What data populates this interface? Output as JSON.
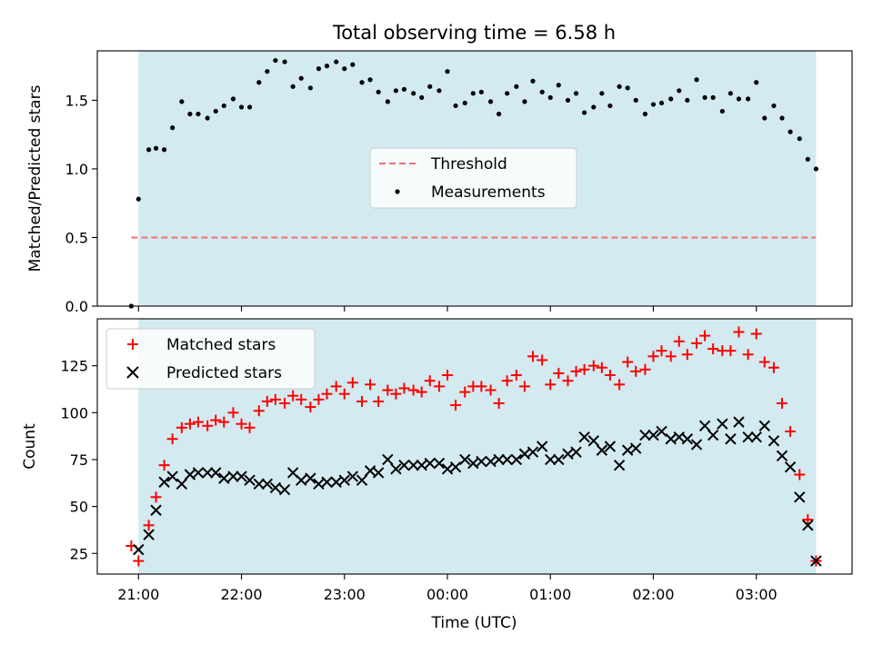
{
  "chart_data": [
    {
      "type": "scatter",
      "title": "Total observing time = 6.58 h",
      "ylabel": "Matched/Predicted stars",
      "xlabel": "",
      "ylim": [
        0,
        1.86
      ],
      "yticks": [
        0.0,
        0.5,
        1.0,
        1.5
      ],
      "ytick_labels": [
        "0.0",
        "0.5",
        "1.0",
        "1.5"
      ],
      "x_unit": "hours after 21:00 UTC",
      "xlim": [
        -0.4,
        6.93
      ],
      "shaded_span": [
        0.0,
        6.58
      ],
      "shade_color": "#d3eaf0",
      "legend": {
        "placement": "center",
        "entries": [
          "Threshold",
          "Measurements"
        ]
      },
      "threshold": {
        "name": "Threshold",
        "value": 0.5,
        "x_range": [
          -0.07,
          6.58
        ],
        "color": "#f07070"
      },
      "series": [
        {
          "name": "Measurements",
          "color": "#000000",
          "x": [
            -0.07,
            0.0,
            0.1,
            0.17,
            0.25,
            0.33,
            0.42,
            0.5,
            0.58,
            0.67,
            0.75,
            0.83,
            0.92,
            1.0,
            1.08,
            1.17,
            1.25,
            1.33,
            1.42,
            1.5,
            1.58,
            1.67,
            1.75,
            1.83,
            1.92,
            2.0,
            2.08,
            2.17,
            2.25,
            2.33,
            2.42,
            2.5,
            2.58,
            2.67,
            2.75,
            2.83,
            2.92,
            3.0,
            3.08,
            3.17,
            3.25,
            3.33,
            3.42,
            3.5,
            3.58,
            3.67,
            3.75,
            3.83,
            3.92,
            4.0,
            4.08,
            4.17,
            4.25,
            4.33,
            4.42,
            4.5,
            4.58,
            4.67,
            4.75,
            4.83,
            4.92,
            5.0,
            5.08,
            5.17,
            5.25,
            5.33,
            5.42,
            5.5,
            5.58,
            5.67,
            5.75,
            5.83,
            5.92,
            6.0,
            6.08,
            6.17,
            6.25,
            6.33,
            6.42,
            6.5,
            6.58
          ],
          "y": [
            0.0,
            0.78,
            1.14,
            1.15,
            1.14,
            1.3,
            1.49,
            1.4,
            1.4,
            1.37,
            1.42,
            1.46,
            1.51,
            1.45,
            1.45,
            1.63,
            1.71,
            1.79,
            1.78,
            1.6,
            1.66,
            1.59,
            1.73,
            1.75,
            1.78,
            1.73,
            1.76,
            1.63,
            1.65,
            1.56,
            1.49,
            1.57,
            1.58,
            1.55,
            1.52,
            1.6,
            1.57,
            1.71,
            1.46,
            1.48,
            1.55,
            1.56,
            1.49,
            1.4,
            1.55,
            1.6,
            1.49,
            1.64,
            1.56,
            1.52,
            1.61,
            1.5,
            1.55,
            1.41,
            1.45,
            1.55,
            1.46,
            1.6,
            1.59,
            1.5,
            1.4,
            1.47,
            1.48,
            1.51,
            1.57,
            1.5,
            1.65,
            1.52,
            1.52,
            1.42,
            1.55,
            1.51,
            1.51,
            1.63,
            1.37,
            1.46,
            1.37,
            1.27,
            1.22,
            1.07,
            1.0
          ]
        }
      ]
    },
    {
      "type": "scatter",
      "title": "",
      "ylabel": "Count",
      "xlabel": "Time (UTC)",
      "ylim": [
        14,
        150
      ],
      "yticks": [
        25,
        50,
        75,
        100,
        125
      ],
      "ytick_labels": [
        "25",
        "50",
        "75",
        "100",
        "125"
      ],
      "x_unit": "hours after 21:00 UTC",
      "xlim": [
        -0.4,
        6.93
      ],
      "xticks": [
        0,
        1,
        2,
        3,
        4,
        5,
        6
      ],
      "xtick_labels": [
        "21:00",
        "22:00",
        "23:00",
        "00:00",
        "01:00",
        "02:00",
        "03:00"
      ],
      "shaded_span": [
        0.0,
        6.58
      ],
      "shade_color": "#d3eaf0",
      "legend": {
        "placement": "upper-left",
        "entries": [
          "Matched stars",
          "Predicted stars"
        ]
      },
      "series": [
        {
          "name": "Matched stars",
          "marker": "plus",
          "color": "#ff0000",
          "x": [
            -0.07,
            0.0,
            0.1,
            0.17,
            0.25,
            0.33,
            0.42,
            0.5,
            0.58,
            0.67,
            0.75,
            0.83,
            0.92,
            1.0,
            1.08,
            1.17,
            1.25,
            1.33,
            1.42,
            1.5,
            1.58,
            1.67,
            1.75,
            1.83,
            1.92,
            2.0,
            2.08,
            2.17,
            2.25,
            2.33,
            2.42,
            2.5,
            2.58,
            2.67,
            2.75,
            2.83,
            2.92,
            3.0,
            3.08,
            3.17,
            3.25,
            3.33,
            3.42,
            3.5,
            3.58,
            3.67,
            3.75,
            3.83,
            3.92,
            4.0,
            4.08,
            4.17,
            4.25,
            4.33,
            4.42,
            4.5,
            4.58,
            4.67,
            4.75,
            4.83,
            4.92,
            5.0,
            5.08,
            5.17,
            5.25,
            5.33,
            5.42,
            5.5,
            5.58,
            5.67,
            5.75,
            5.83,
            5.92,
            6.0,
            6.08,
            6.17,
            6.25,
            6.33,
            6.42,
            6.5,
            6.58
          ],
          "y": [
            29,
            21,
            40,
            55,
            72,
            86,
            92,
            94,
            95,
            93,
            96,
            95,
            100,
            94,
            92,
            101,
            106,
            107,
            105,
            109,
            107,
            103,
            107,
            110,
            114,
            110,
            116,
            106,
            115,
            106,
            112,
            110,
            113,
            112,
            111,
            117,
            114,
            120,
            104,
            111,
            114,
            114,
            112,
            105,
            117,
            120,
            114,
            130,
            128,
            115,
            121,
            117,
            122,
            123,
            125,
            124,
            120,
            115,
            127,
            122,
            123,
            130,
            133,
            130,
            138,
            131,
            137,
            141,
            134,
            133,
            133,
            143,
            131,
            142,
            127,
            124,
            105,
            90,
            67,
            43,
            21
          ]
        },
        {
          "name": "Predicted stars",
          "marker": "x",
          "color": "#000000",
          "x": [
            0.0,
            0.1,
            0.17,
            0.25,
            0.33,
            0.42,
            0.5,
            0.58,
            0.67,
            0.75,
            0.83,
            0.92,
            1.0,
            1.08,
            1.17,
            1.25,
            1.33,
            1.42,
            1.5,
            1.58,
            1.67,
            1.75,
            1.83,
            1.92,
            2.0,
            2.08,
            2.17,
            2.25,
            2.33,
            2.42,
            2.5,
            2.58,
            2.67,
            2.75,
            2.83,
            2.92,
            3.0,
            3.08,
            3.17,
            3.25,
            3.33,
            3.42,
            3.5,
            3.58,
            3.67,
            3.75,
            3.83,
            3.92,
            4.0,
            4.08,
            4.17,
            4.25,
            4.33,
            4.42,
            4.5,
            4.58,
            4.67,
            4.75,
            4.83,
            4.92,
            5.0,
            5.08,
            5.17,
            5.25,
            5.33,
            5.42,
            5.5,
            5.58,
            5.67,
            5.75,
            5.83,
            5.92,
            6.0,
            6.08,
            6.17,
            6.25,
            6.33,
            6.42,
            6.5,
            6.58
          ],
          "y": [
            27,
            35,
            48,
            63,
            66,
            62,
            67,
            68,
            68,
            68,
            65,
            66,
            66,
            64,
            62,
            62,
            60,
            59,
            68,
            64,
            65,
            62,
            63,
            63,
            64,
            66,
            64,
            69,
            68,
            75,
            70,
            72,
            72,
            72,
            73,
            73,
            70,
            71,
            75,
            73,
            74,
            74,
            75,
            75,
            75,
            78,
            79,
            82,
            75,
            75,
            78,
            79,
            87,
            85,
            80,
            82,
            72,
            80,
            81,
            88,
            88,
            90,
            86,
            87,
            86,
            83,
            93,
            88,
            94,
            86,
            95,
            87,
            87,
            93,
            85,
            77,
            71,
            55,
            40,
            21
          ]
        }
      ]
    }
  ]
}
